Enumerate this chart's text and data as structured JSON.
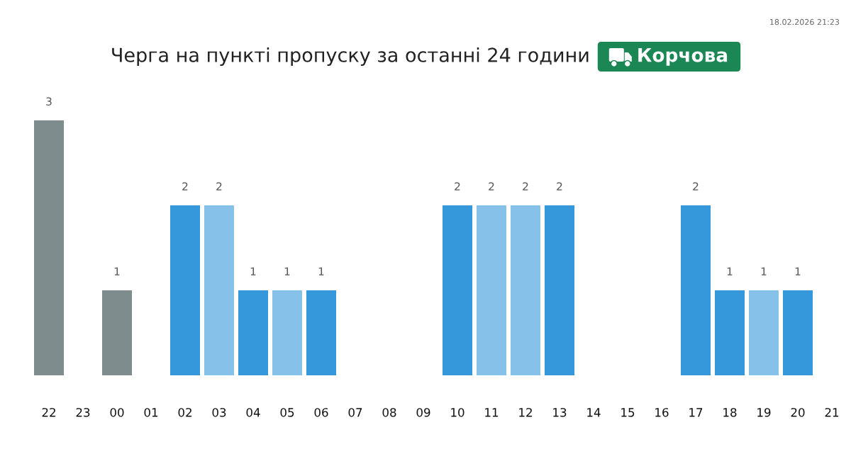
{
  "chart_data": {
    "type": "bar",
    "title": "Черга на пункті пропуску за останні 24 години",
    "subtitle": "Корчова",
    "annotations": [
      "18.02.2026 21:23"
    ],
    "categories": [
      "22",
      "23",
      "00",
      "01",
      "02",
      "03",
      "04",
      "05",
      "06",
      "07",
      "08",
      "09",
      "10",
      "11",
      "12",
      "13",
      "14",
      "15",
      "16",
      "17",
      "18",
      "19",
      "20",
      "21"
    ],
    "values": [
      3,
      null,
      1,
      null,
      2,
      2,
      1,
      1,
      1,
      null,
      null,
      null,
      2,
      2,
      2,
      2,
      null,
      null,
      null,
      2,
      1,
      1,
      1,
      null
    ],
    "colors": [
      "#7f8c8d",
      null,
      "#7f8c8d",
      null,
      "#3498db",
      "#85c1e9",
      "#3498db",
      "#85c1e9",
      "#3498db",
      null,
      null,
      null,
      "#3498db",
      "#85c1e9",
      "#85c1e9",
      "#3498db",
      null,
      null,
      null,
      "#3498db",
      "#3498db",
      "#85c1e9",
      "#3498db",
      null
    ],
    "data_labels": true
  }
}
